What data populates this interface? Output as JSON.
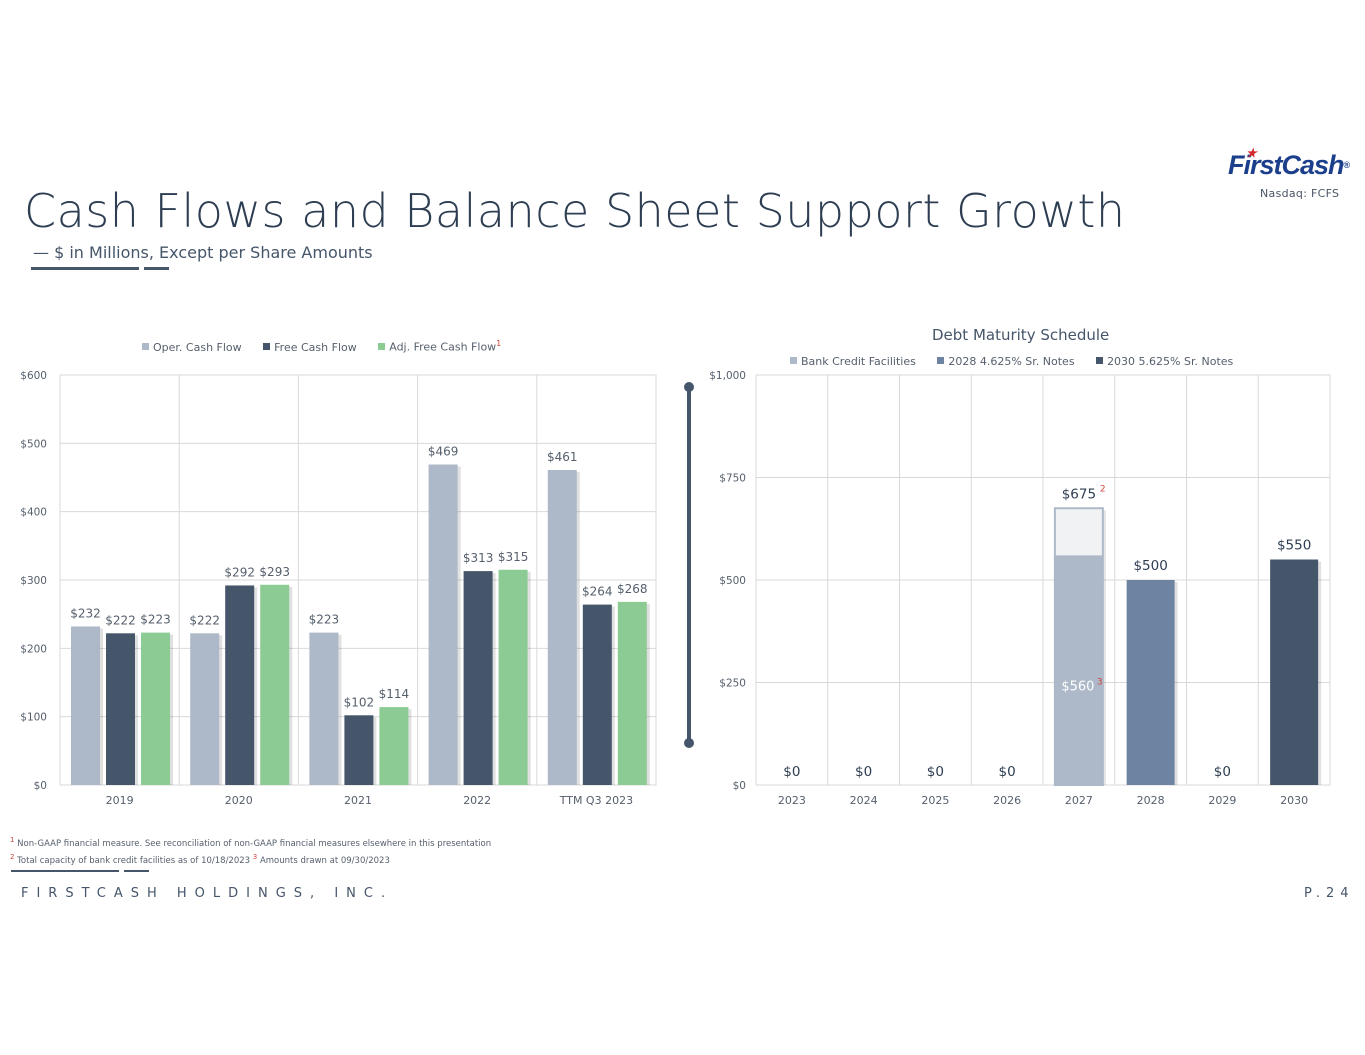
{
  "logo": {
    "word": "FirstCash",
    "ticker": "Nasdaq: FCFS"
  },
  "title": "Cash Flows and Balance Sheet Support Growth",
  "subtitle": "— $ in Millions, Except per Share Amounts",
  "colors": {
    "oper": "#adb8c8",
    "free": "#45556a",
    "adj": "#8ccc94",
    "bank": "#adb8c8",
    "notes2028": "#6e83a1",
    "notes2030": "#45556a",
    "bank_capacity": "#f1f2f3",
    "footnote_red": "#d0453a"
  },
  "chart_data": [
    {
      "type": "bar",
      "title": "",
      "categories": [
        "2019",
        "2020",
        "2021",
        "2022",
        "TTM Q3 2023"
      ],
      "series": [
        {
          "name": "Oper. Cash Flow",
          "values": [
            232,
            222,
            223,
            469,
            461
          ]
        },
        {
          "name": "Free Cash Flow",
          "values": [
            222,
            292,
            102,
            313,
            264
          ]
        },
        {
          "name": "Adj. Free Cash Flow",
          "values": [
            223,
            293,
            114,
            315,
            268
          ],
          "footnote": "1"
        }
      ],
      "ylim": [
        0,
        600
      ],
      "yticks": [
        0,
        100,
        200,
        300,
        400,
        500,
        600
      ],
      "ytick_labels": [
        "$0",
        "$100",
        "$200",
        "$300",
        "$400",
        "$500",
        "$600"
      ],
      "data_labels": [
        [
          "$232",
          "$222",
          "$223"
        ],
        [
          "$222",
          "$292",
          "$293"
        ],
        [
          "$223",
          "$102",
          "$114"
        ],
        [
          "$469",
          "$313",
          "$315"
        ],
        [
          "$461",
          "$264",
          "$268"
        ]
      ],
      "grid": true,
      "legend_position": "top"
    },
    {
      "type": "bar",
      "title": "Debt Maturity Schedule",
      "categories": [
        "2023",
        "2024",
        "2025",
        "2026",
        "2027",
        "2028",
        "2029",
        "2030"
      ],
      "series": [
        {
          "name": "Bank Credit Facilities",
          "values": [
            0,
            0,
            0,
            0,
            560,
            0,
            0,
            0
          ],
          "capacity": [
            0,
            0,
            0,
            0,
            675,
            0,
            0,
            0
          ]
        },
        {
          "name": "2028 4.625% Sr. Notes",
          "values": [
            0,
            0,
            0,
            0,
            0,
            500,
            0,
            0
          ]
        },
        {
          "name": "2030 5.625% Sr. Notes",
          "values": [
            0,
            0,
            0,
            0,
            0,
            0,
            0,
            550
          ]
        }
      ],
      "totals": [
        "$0",
        "$0",
        "$0",
        "$0",
        "$675",
        "$500",
        "$0",
        "$550"
      ],
      "total_footnotes": [
        "",
        "",
        "",
        "",
        "2",
        "",
        "",
        ""
      ],
      "inner_label": {
        "category": "2027",
        "text": "$560",
        "footnote": "3"
      },
      "ylim": [
        0,
        1000
      ],
      "yticks": [
        0,
        250,
        500,
        750,
        1000
      ],
      "ytick_labels": [
        "$0",
        "$250",
        "$500",
        "$750",
        "$1,000"
      ],
      "grid": true,
      "legend_position": "top"
    }
  ],
  "footnotes": [
    {
      "num": "1",
      "text": "Non-GAAP financial measure. See reconciliation of non-GAAP financial measures elsewhere in this presentation"
    },
    {
      "num": "2",
      "text": "Total capacity of bank credit facilities as of 10/18/2023",
      "num2": "3",
      "text2": "Amounts drawn at 09/30/2023"
    }
  ],
  "footer": {
    "company": "FIRSTCASH HOLDINGS, INC.",
    "page": "P.24"
  }
}
